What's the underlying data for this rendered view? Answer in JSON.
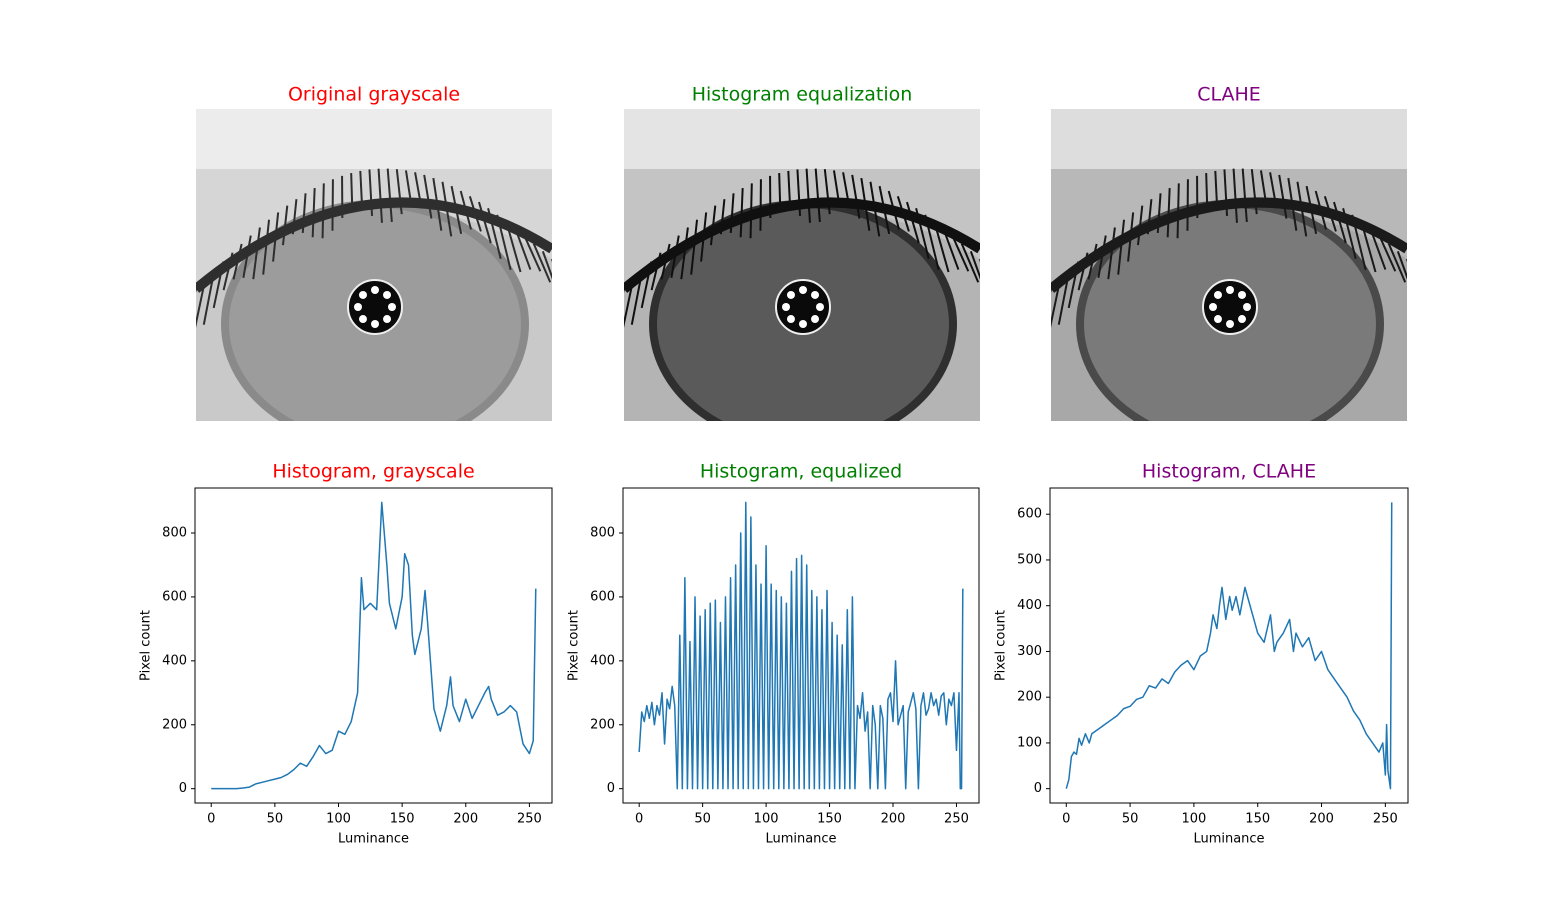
{
  "images": [
    {
      "title": "Original grayscale",
      "title_color": "red"
    },
    {
      "title": "Histogram equalization",
      "title_color": "green"
    },
    {
      "title": "CLAHE",
      "title_color": "purple"
    }
  ],
  "chart_data": [
    {
      "type": "line",
      "title": "Histogram, grayscale",
      "title_color": "red",
      "x_label": "Luminance",
      "y_label": "Pixel count",
      "color": "#1f77b4",
      "x": [
        0,
        5,
        10,
        15,
        20,
        25,
        30,
        35,
        40,
        45,
        50,
        55,
        60,
        65,
        70,
        75,
        80,
        85,
        90,
        95,
        100,
        105,
        110,
        115,
        118,
        120,
        125,
        130,
        134,
        138,
        140,
        145,
        150,
        152,
        155,
        158,
        160,
        165,
        168,
        170,
        175,
        180,
        185,
        188,
        190,
        195,
        200,
        205,
        210,
        215,
        218,
        220,
        225,
        230,
        235,
        240,
        245,
        250,
        253,
        255
      ],
      "values": [
        0,
        0,
        0,
        0,
        0,
        2,
        5,
        15,
        20,
        25,
        30,
        35,
        45,
        60,
        80,
        70,
        100,
        135,
        110,
        120,
        180,
        170,
        210,
        300,
        660,
        560,
        580,
        560,
        896,
        700,
        580,
        500,
        600,
        735,
        700,
        480,
        420,
        500,
        620,
        520,
        250,
        180,
        260,
        350,
        260,
        210,
        280,
        220,
        260,
        300,
        320,
        280,
        230,
        240,
        260,
        240,
        140,
        110,
        150,
        626
      ],
      "xlim": [
        -12.75,
        267.75
      ],
      "xticks": [
        0,
        50,
        100,
        150,
        200,
        250
      ],
      "ylim": [
        -44.8,
        940.8
      ],
      "yticks": [
        0,
        200,
        400,
        600,
        800
      ]
    },
    {
      "type": "line",
      "title": "Histogram, equalized",
      "title_color": "green",
      "x_label": "Luminance",
      "y_label": "Pixel count",
      "color": "#1f77b4",
      "x": [
        0,
        2,
        4,
        6,
        8,
        10,
        12,
        14,
        16,
        18,
        20,
        22,
        24,
        26,
        28,
        30,
        32,
        34,
        36,
        38,
        40,
        42,
        44,
        46,
        48,
        50,
        52,
        54,
        56,
        58,
        60,
        62,
        64,
        66,
        68,
        70,
        72,
        74,
        76,
        78,
        80,
        82,
        84,
        86,
        88,
        90,
        92,
        94,
        96,
        98,
        100,
        102,
        104,
        106,
        108,
        110,
        112,
        114,
        116,
        118,
        120,
        122,
        124,
        126,
        128,
        130,
        132,
        134,
        136,
        138,
        140,
        142,
        144,
        146,
        148,
        150,
        152,
        154,
        156,
        158,
        160,
        162,
        164,
        166,
        168,
        170,
        172,
        174,
        176,
        178,
        180,
        182,
        184,
        186,
        188,
        190,
        192,
        194,
        196,
        198,
        200,
        202,
        204,
        206,
        208,
        210,
        212,
        214,
        216,
        218,
        220,
        222,
        224,
        226,
        228,
        230,
        232,
        234,
        236,
        238,
        240,
        242,
        244,
        246,
        248,
        250,
        252,
        253,
        254,
        255
      ],
      "values": [
        115,
        240,
        210,
        260,
        220,
        270,
        200,
        260,
        230,
        300,
        140,
        280,
        250,
        320,
        260,
        0,
        480,
        0,
        660,
        0,
        460,
        0,
        600,
        0,
        540,
        0,
        560,
        0,
        580,
        0,
        590,
        0,
        520,
        0,
        600,
        0,
        660,
        0,
        700,
        0,
        800,
        0,
        896,
        0,
        850,
        0,
        700,
        0,
        640,
        0,
        760,
        0,
        640,
        0,
        620,
        0,
        600,
        0,
        580,
        0,
        680,
        0,
        720,
        0,
        730,
        0,
        700,
        0,
        620,
        0,
        600,
        0,
        560,
        0,
        620,
        0,
        520,
        0,
        480,
        0,
        450,
        0,
        560,
        0,
        600,
        0,
        260,
        220,
        300,
        180,
        240,
        0,
        260,
        200,
        0,
        260,
        220,
        0,
        280,
        300,
        210,
        400,
        200,
        230,
        260,
        0,
        240,
        270,
        300,
        250,
        0,
        260,
        300,
        230,
        250,
        300,
        260,
        280,
        230,
        290,
        300,
        200,
        280,
        260,
        300,
        120,
        300,
        0,
        0,
        626
      ],
      "xlim": [
        -12.75,
        267.75
      ],
      "xticks": [
        0,
        50,
        100,
        150,
        200,
        250
      ],
      "ylim": [
        -44.8,
        940.8
      ],
      "yticks": [
        0,
        200,
        400,
        600,
        800
      ]
    },
    {
      "type": "line",
      "title": "Histogram, CLAHE",
      "title_color": "purple",
      "x_label": "Luminance",
      "y_label": "Pixel count",
      "color": "#1f77b4",
      "x": [
        0,
        2,
        4,
        6,
        8,
        10,
        12,
        15,
        18,
        20,
        25,
        30,
        35,
        40,
        45,
        50,
        55,
        60,
        65,
        70,
        75,
        80,
        85,
        90,
        95,
        100,
        105,
        110,
        113,
        115,
        118,
        120,
        122,
        125,
        128,
        130,
        133,
        136,
        140,
        143,
        146,
        150,
        155,
        160,
        163,
        165,
        170,
        175,
        178,
        180,
        185,
        190,
        195,
        200,
        205,
        210,
        215,
        220,
        225,
        230,
        235,
        240,
        245,
        248,
        250,
        251,
        252,
        253,
        254,
        255
      ],
      "values": [
        0,
        20,
        70,
        80,
        75,
        110,
        95,
        120,
        100,
        120,
        130,
        140,
        150,
        160,
        175,
        180,
        195,
        200,
        225,
        220,
        240,
        230,
        255,
        270,
        280,
        260,
        290,
        300,
        340,
        380,
        350,
        400,
        440,
        370,
        420,
        390,
        420,
        380,
        440,
        410,
        380,
        340,
        320,
        380,
        300,
        320,
        340,
        370,
        300,
        340,
        310,
        330,
        280,
        300,
        260,
        240,
        220,
        200,
        170,
        150,
        120,
        100,
        80,
        100,
        30,
        140,
        40,
        20,
        0,
        626
      ],
      "xlim": [
        -12.75,
        267.75
      ],
      "xticks": [
        0,
        50,
        100,
        150,
        200,
        250
      ],
      "ylim": [
        -31.3,
        657.3
      ],
      "yticks": [
        0,
        100,
        200,
        300,
        400,
        500,
        600
      ]
    }
  ]
}
